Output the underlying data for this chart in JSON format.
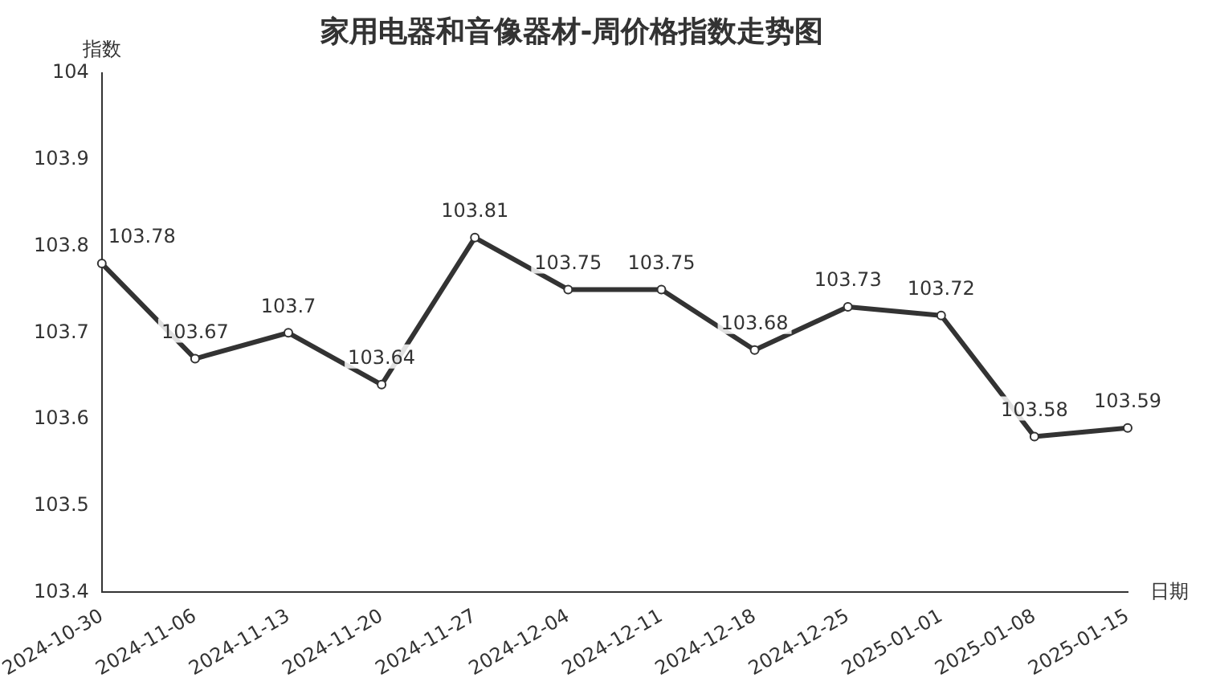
{
  "chart_data": {
    "type": "line",
    "title": "家用电器和音像器材-周价格指数走势图",
    "xlabel": "日期",
    "ylabel": "指数",
    "categories": [
      "2024-10-30",
      "2024-11-06",
      "2024-11-13",
      "2024-11-20",
      "2024-11-27",
      "2024-12-04",
      "2024-12-11",
      "2024-12-18",
      "2024-12-25",
      "2025-01-01",
      "2025-01-08",
      "2025-01-15"
    ],
    "series": [
      {
        "color": "#333333",
        "values": [
          103.78,
          103.67,
          103.7,
          103.64,
          103.81,
          103.75,
          103.75,
          103.68,
          103.73,
          103.72,
          103.58,
          103.59
        ]
      }
    ],
    "ylim": [
      103.4,
      104
    ],
    "yticks": [
      103.4,
      103.5,
      103.6,
      103.7,
      103.8,
      103.9,
      104
    ],
    "data_labels": true,
    "marker": "circle",
    "line_style": "solid",
    "grid": false,
    "legend": false
  }
}
